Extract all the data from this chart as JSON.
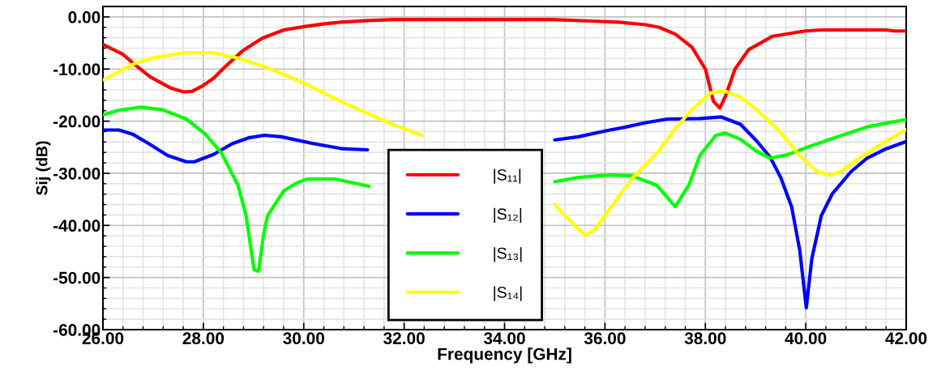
{
  "chart_data": {
    "type": "line",
    "xlabel": "Frequency [GHz]",
    "ylabel": "Sij (dB)",
    "xlim": [
      26,
      42
    ],
    "ylim": [
      -60,
      2
    ],
    "xticks": [
      {
        "value": 26,
        "label": "26.00"
      },
      {
        "value": 28,
        "label": "28.00"
      },
      {
        "value": 30,
        "label": "30.00"
      },
      {
        "value": 32,
        "label": "32.00"
      },
      {
        "value": 34,
        "label": "34.00"
      },
      {
        "value": 36,
        "label": "36.00"
      },
      {
        "value": 38,
        "label": "38.00"
      },
      {
        "value": 40,
        "label": "40.00"
      },
      {
        "value": 42,
        "label": "42.00"
      }
    ],
    "yticks": [
      {
        "value": -60,
        "label": "-60.00"
      },
      {
        "value": -50,
        "label": "-50.00"
      },
      {
        "value": -40,
        "label": "-40.00"
      },
      {
        "value": -30,
        "label": "-30.00"
      },
      {
        "value": -20,
        "label": "-20.00"
      },
      {
        "value": -10,
        "label": "-10.00"
      },
      {
        "value": 0,
        "label": "0.00"
      }
    ],
    "grid": true,
    "legend": "bottom",
    "marker": "none",
    "line_style": "solid",
    "series": [
      {
        "name": "|S₁₁|",
        "color": "#ff0000",
        "x": [
          26,
          26.4,
          26.64,
          26.94,
          27.34,
          27.61,
          27.77,
          27.99,
          28.2,
          28.42,
          28.77,
          29.17,
          29.6,
          29.98,
          30.35,
          30.73,
          31.27,
          31.81,
          34.93,
          35.73,
          36.27,
          36.81,
          37.08,
          37.4,
          37.73,
          38.0,
          38.16,
          38.29,
          38.4,
          38.59,
          38.86,
          39.34,
          39.99,
          40.31,
          41.6,
          41.76,
          42
        ],
        "values": [
          -5.3,
          -7.2,
          -9.2,
          -11.5,
          -13.6,
          -14.4,
          -14.3,
          -13.2,
          -11.8,
          -9.7,
          -6.6,
          -4.1,
          -2.5,
          -1.9,
          -1.4,
          -1.0,
          -0.7,
          -0.5,
          -0.5,
          -0.8,
          -1.0,
          -1.5,
          -2.0,
          -3.3,
          -5.8,
          -10,
          -16.2,
          -17.5,
          -15.2,
          -10,
          -6.3,
          -3.7,
          -2.7,
          -2.5,
          -2.5,
          -2.7,
          -2.7
        ]
      },
      {
        "name": "|S₁₂|",
        "color": "#0000ff",
        "x": [
          26,
          26.32,
          26.59,
          26.91,
          27.29,
          27.66,
          27.82,
          28.2,
          28.58,
          28.9,
          29.22,
          29.55,
          30.19,
          30.78,
          31.27,
          31.59,
          33.2,
          35.0,
          35.47,
          36.0,
          36.43,
          36.81,
          37.24,
          37.89,
          38.32,
          38.7,
          39.02,
          39.29,
          39.5,
          39.72,
          39.88,
          40.01,
          40.12,
          40.31,
          40.53,
          40.9,
          41.22,
          41.6,
          42
        ],
        "values": [
          -21.7,
          -21.7,
          -22.5,
          -24.3,
          -26.6,
          -27.8,
          -27.8,
          -26.4,
          -24.3,
          -23.2,
          -22.7,
          -23.0,
          -24.3,
          -25.3,
          -25.5,
          null,
          null,
          -23.6,
          -23.0,
          -21.9,
          -21.1,
          -20.3,
          -19.6,
          -19.5,
          -19.2,
          -20.6,
          -23.8,
          -26.9,
          -30.8,
          -36.5,
          -44.8,
          -55.8,
          -46.4,
          -38.1,
          -33.9,
          -29.7,
          -27.1,
          -25.3,
          -23.9
        ]
      },
      {
        "name": "|S₁₃|",
        "color": "#00ff00",
        "x": [
          26,
          26.32,
          26.75,
          27.18,
          27.66,
          28.04,
          28.36,
          28.69,
          28.85,
          29.01,
          29.1,
          29.2,
          29.28,
          29.6,
          29.87,
          30.08,
          30.62,
          31.3,
          33.2,
          35.0,
          35.47,
          36.11,
          36.54,
          37.03,
          37.4,
          37.67,
          37.89,
          38.21,
          38.4,
          38.7,
          39.02,
          39.29,
          39.61,
          40.09,
          40.63,
          41.22,
          41.6,
          42
        ],
        "values": [
          -18.8,
          -17.9,
          -17.3,
          -17.8,
          -19.6,
          -22.5,
          -26.1,
          -32.3,
          -38.1,
          -48.5,
          -48.8,
          -41.7,
          -38.1,
          -33.4,
          -31.8,
          -31.1,
          -31.1,
          -32.5,
          null,
          -31.6,
          -30.8,
          -30.3,
          -30.5,
          -32.3,
          -36.4,
          -32.3,
          -26.6,
          -22.7,
          -22.3,
          -23.5,
          -25.8,
          -27.1,
          -26.5,
          -24.8,
          -23.0,
          -21.1,
          -20.4,
          -19.7
        ]
      },
      {
        "name": "|S₁₄|",
        "color": "#ffff00",
        "x": [
          26,
          26.32,
          26.64,
          27.02,
          27.61,
          28.2,
          28.69,
          29.17,
          29.65,
          30.19,
          30.73,
          31.27,
          31.81,
          32.35,
          32.51,
          33.7,
          35.0,
          35.2,
          35.6,
          35.79,
          36.0,
          36.54,
          37.08,
          37.4,
          37.73,
          38.1,
          38.37,
          38.7,
          39.02,
          39.45,
          39.88,
          40.2,
          40.47,
          40.69,
          41.06,
          41.49,
          42
        ],
        "values": [
          -12.1,
          -10.5,
          -8.9,
          -7.8,
          -6.9,
          -6.9,
          -7.9,
          -9.4,
          -11.2,
          -13.6,
          -16.2,
          -18.5,
          -20.8,
          -22.7,
          null,
          null,
          -36.0,
          -38.1,
          -41.9,
          -40.9,
          -38.1,
          -31.0,
          -25.6,
          -21.4,
          -17.8,
          -14.6,
          -14.2,
          -15.4,
          -17.8,
          -21.7,
          -26.6,
          -29.5,
          -30.4,
          -29.7,
          -27.1,
          -24.5,
          -21.6
        ]
      }
    ]
  }
}
